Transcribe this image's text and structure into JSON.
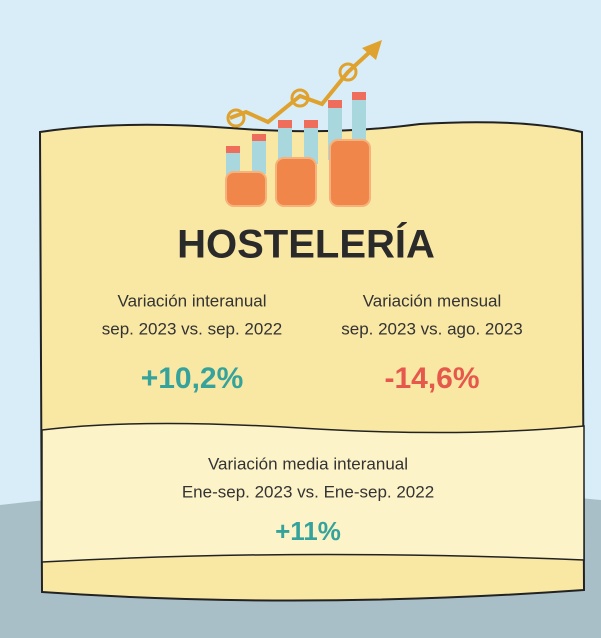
{
  "title": "HOSTELERÍA",
  "indicators": [
    {
      "label": "Variación interanual",
      "period": "sep. 2023 vs. sep. 2022",
      "value": "+10,2%"
    },
    {
      "label": "Variación mensual",
      "period": "sep. 2023 vs. ago. 2023",
      "value": "-14,6%"
    },
    {
      "label": "Variación media interanual",
      "period": "Ene-sep. 2023 vs. Ene-sep. 2022",
      "value": "+11%"
    }
  ]
}
